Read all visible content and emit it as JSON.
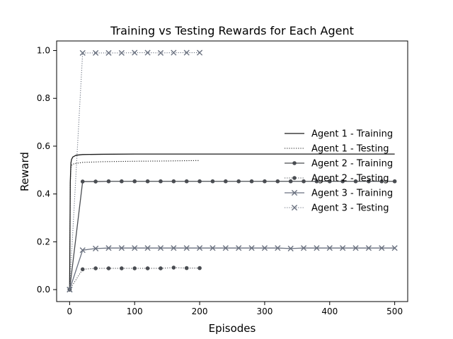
{
  "chart_data": {
    "type": "line",
    "title": "Training vs Testing Rewards for Each Agent",
    "xlabel": "Episodes",
    "ylabel": "Reward",
    "xlim": [
      -20,
      520
    ],
    "ylim": [
      -0.05,
      1.04
    ],
    "xticks": [
      0,
      100,
      200,
      300,
      400,
      500
    ],
    "yticks": [
      0.0,
      0.2,
      0.4,
      0.6,
      0.8,
      1.0
    ],
    "xtick_labels": [
      "0",
      "100",
      "200",
      "300",
      "400",
      "500"
    ],
    "ytick_labels": [
      "0.0",
      "0.2",
      "0.4",
      "0.6",
      "0.8",
      "1.0"
    ],
    "grid": false,
    "legend_position": "center-right",
    "series": [
      {
        "name": "Agent 1 - Training",
        "color": "#1a1a1a",
        "dash": "solid",
        "marker": "none",
        "x": [
          0,
          1,
          2,
          3,
          5,
          10,
          20,
          50,
          100,
          200,
          300,
          400,
          500
        ],
        "y": [
          0.0,
          0.45,
          0.53,
          0.545,
          0.555,
          0.562,
          0.565,
          0.566,
          0.567,
          0.567,
          0.567,
          0.567,
          0.567
        ]
      },
      {
        "name": "Agent 1 - Testing",
        "color": "#1a1a1a",
        "dash": "dotted",
        "marker": "none",
        "x": [
          0,
          1,
          2,
          3,
          5,
          10,
          20,
          50,
          100,
          150,
          200
        ],
        "y": [
          0.0,
          0.44,
          0.51,
          0.52,
          0.525,
          0.528,
          0.532,
          0.535,
          0.537,
          0.538,
          0.54
        ]
      },
      {
        "name": "Agent 2 - Training",
        "color": "#4a4d52",
        "dash": "solid",
        "marker": "dot",
        "x": [
          0,
          20,
          40,
          60,
          80,
          100,
          120,
          140,
          160,
          180,
          200,
          220,
          240,
          260,
          280,
          300,
          320,
          340,
          360,
          380,
          400,
          420,
          440,
          460,
          480,
          500
        ],
        "y": [
          0.0,
          0.452,
          0.452,
          0.453,
          0.453,
          0.453,
          0.453,
          0.453,
          0.453,
          0.453,
          0.453,
          0.453,
          0.453,
          0.453,
          0.453,
          0.453,
          0.453,
          0.453,
          0.453,
          0.453,
          0.453,
          0.453,
          0.453,
          0.453,
          0.453,
          0.453
        ]
      },
      {
        "name": "Agent 2 - Testing",
        "color": "#4a4d52",
        "dash": "dotted",
        "marker": "dot",
        "x": [
          0,
          20,
          40,
          60,
          80,
          100,
          120,
          140,
          160,
          180,
          200
        ],
        "y": [
          0.0,
          0.085,
          0.089,
          0.089,
          0.089,
          0.089,
          0.089,
          0.089,
          0.092,
          0.09,
          0.09
        ]
      },
      {
        "name": "Agent 3 - Training",
        "color": "#6b7280",
        "dash": "solid",
        "marker": "x",
        "x": [
          0,
          20,
          40,
          60,
          80,
          100,
          120,
          140,
          160,
          180,
          200,
          220,
          240,
          260,
          280,
          300,
          320,
          340,
          360,
          380,
          400,
          420,
          440,
          460,
          480,
          500
        ],
        "y": [
          0.0,
          0.165,
          0.172,
          0.174,
          0.174,
          0.174,
          0.174,
          0.174,
          0.174,
          0.174,
          0.174,
          0.174,
          0.174,
          0.174,
          0.174,
          0.174,
          0.174,
          0.172,
          0.174,
          0.174,
          0.174,
          0.174,
          0.174,
          0.174,
          0.174,
          0.174
        ]
      },
      {
        "name": "Agent 3 - Testing",
        "color": "#6b7280",
        "dash": "dotted",
        "marker": "x",
        "x": [
          0,
          20,
          40,
          60,
          80,
          100,
          120,
          140,
          160,
          180,
          200
        ],
        "y": [
          0.0,
          0.99,
          0.99,
          0.99,
          0.99,
          0.991,
          0.991,
          0.99,
          0.991,
          0.991,
          0.991
        ]
      }
    ]
  }
}
